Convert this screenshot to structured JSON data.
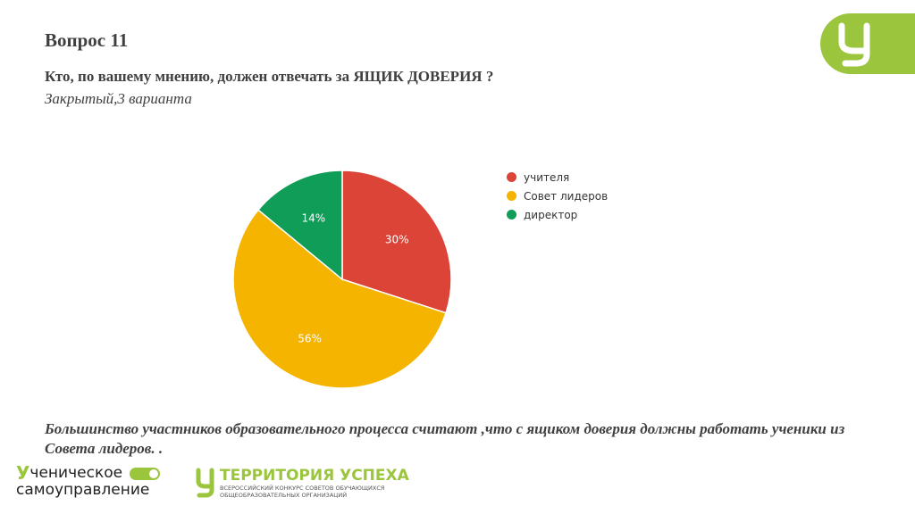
{
  "slide": {
    "title": "Вопрос 11",
    "question": "Кто, по вашему мнению, должен отвечать за ЯЩИК ДОВЕРИЯ ?",
    "question_type": "Закрытый,3 варианта",
    "conclusion": "Большинство участников образовательного процесса считают ,что с ящиком  доверия должны работать ученики из Совета лидеров.   .",
    "logo_icon": "u-letter-logo-icon"
  },
  "footer": {
    "left_line1": "ченическое",
    "left_line1_prefix": "У",
    "left_line2": "самоуправление",
    "right_title": "ТЕРРИТОРИЯ УСПЕХА",
    "right_sub1": "ВСЕРОССИЙСКИЙ КОНКУРС СОВЕТОВ ОБУЧАЮЩИХСЯ",
    "right_sub2": "ОБЩЕОБРАЗОВАТЕЛЬНЫХ ОРГАНИЗАЦИЙ"
  },
  "chart_data": {
    "type": "pie",
    "categories": [
      "учителя",
      "Совет лидеров",
      "директор"
    ],
    "values": [
      30,
      56,
      14
    ],
    "labels": [
      "30%",
      "56%",
      "14%"
    ],
    "colors": [
      "#db4437",
      "#f4b400",
      "#0f9d58"
    ],
    "legend": "right",
    "start": "top-clockwise"
  }
}
